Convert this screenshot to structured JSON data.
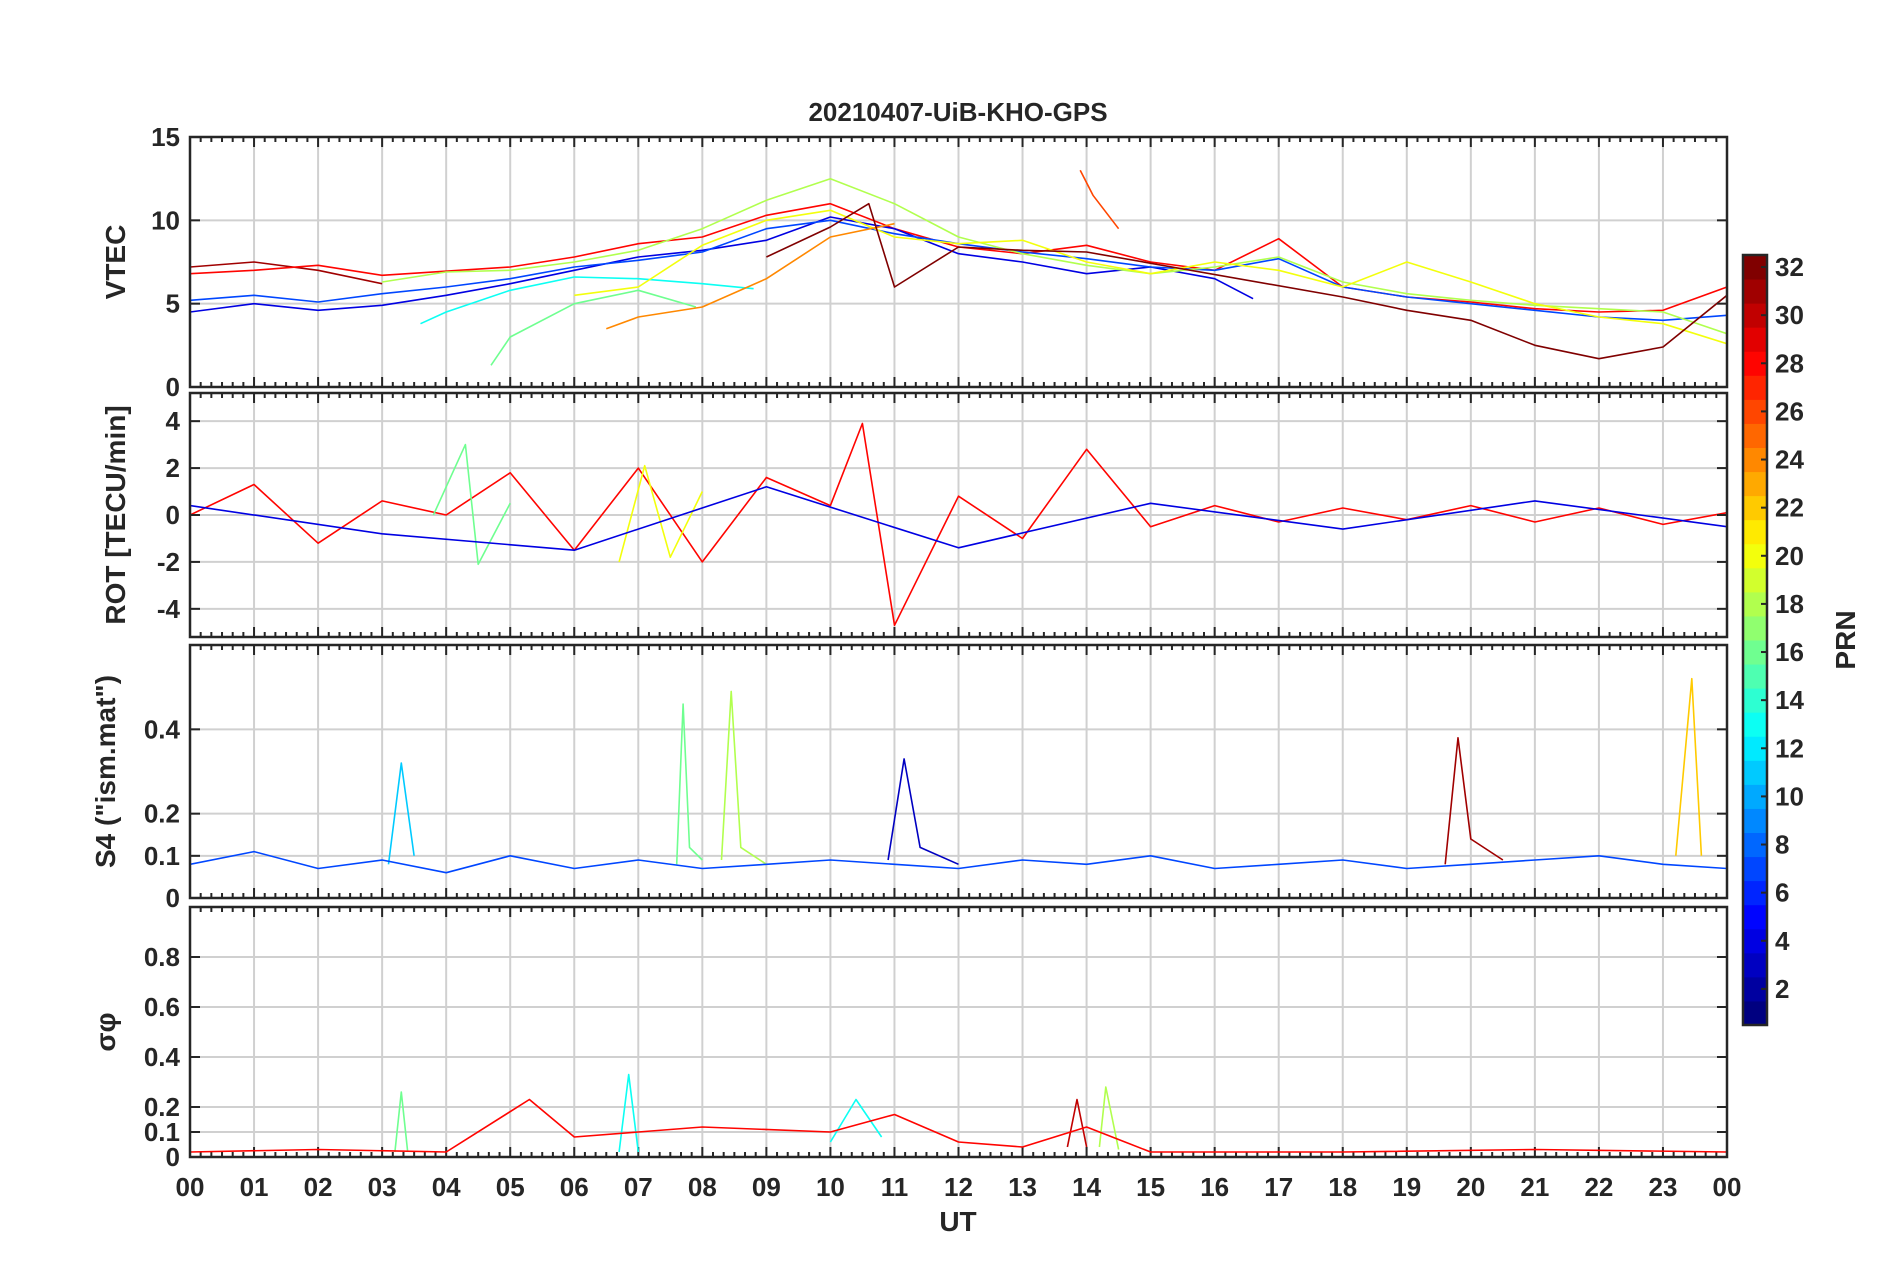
{
  "chart_data": {
    "type": "line",
    "title": "20210407-UiB-KHO-GPS",
    "xlabel": "UT",
    "x_tick_labels": [
      "00",
      "01",
      "02",
      "03",
      "04",
      "05",
      "06",
      "07",
      "08",
      "09",
      "10",
      "11",
      "12",
      "13",
      "14",
      "15",
      "16",
      "17",
      "18",
      "19",
      "20",
      "21",
      "22",
      "23",
      "00"
    ],
    "xlim_hours": [
      0,
      24
    ],
    "grid": true,
    "colorbar": {
      "label": "PRN",
      "colormap": "jet",
      "range": [
        1,
        32
      ],
      "tick_labels": [
        "2",
        "4",
        "6",
        "8",
        "10",
        "12",
        "14",
        "16",
        "18",
        "20",
        "22",
        "24",
        "26",
        "28",
        "30",
        "32"
      ]
    },
    "panels": [
      {
        "ylabel": "VTEC",
        "ylim": [
          0,
          15
        ],
        "y_ticks": [
          0,
          5,
          10,
          15
        ],
        "y_tick_labels": [
          "0",
          "5",
          "10",
          "15"
        ],
        "series": [
          {
            "color_value": 31,
            "x": [
              0,
              1,
              2,
              3
            ],
            "y": [
              7.2,
              7.5,
              7.0,
              6.2
            ]
          },
          {
            "color_value": 28,
            "x": [
              0,
              1,
              2,
              3,
              5,
              6,
              7,
              8,
              9,
              10,
              11,
              12,
              13,
              14,
              15,
              16,
              17,
              18,
              19,
              20,
              21,
              22,
              23,
              24
            ],
            "y": [
              6.8,
              7.0,
              7.3,
              6.7,
              7.2,
              7.8,
              8.6,
              9.0,
              10.3,
              11.0,
              9.5,
              8.4,
              8.0,
              8.5,
              7.5,
              7.0,
              8.9,
              6.0,
              5.4,
              5.1,
              4.7,
              4.5,
              4.6,
              6.0
            ]
          },
          {
            "color_value": 4,
            "x": [
              0,
              1,
              2,
              3,
              4,
              5,
              6,
              7,
              8,
              9,
              10,
              11,
              12,
              13,
              14,
              15,
              16,
              16.6
            ],
            "y": [
              4.5,
              5.0,
              4.6,
              4.9,
              5.5,
              6.2,
              7.0,
              7.8,
              8.2,
              8.8,
              10.2,
              9.5,
              8.0,
              7.5,
              6.8,
              7.2,
              6.5,
              5.3
            ]
          },
          {
            "color_value": 7,
            "x": [
              0,
              1,
              2,
              3,
              4,
              5,
              6,
              7,
              8,
              9,
              10,
              11,
              12,
              13,
              14,
              15,
              16,
              17,
              18,
              19,
              20,
              21,
              22,
              23,
              24
            ],
            "y": [
              5.2,
              5.5,
              5.1,
              5.6,
              6.0,
              6.5,
              7.2,
              7.6,
              8.1,
              9.5,
              10.0,
              9.2,
              8.6,
              8.1,
              7.7,
              7.2,
              7.0,
              7.7,
              6.0,
              5.4,
              5.0,
              4.6,
              4.2,
              4.0,
              4.3
            ]
          },
          {
            "color_value": 13,
            "x": [
              3.6,
              4,
              5,
              6,
              7,
              8,
              8.8
            ],
            "y": [
              3.8,
              4.5,
              5.8,
              6.6,
              6.5,
              6.2,
              5.9
            ]
          },
          {
            "color_value": 16,
            "x": [
              4.7,
              5,
              6,
              7,
              7.9
            ],
            "y": [
              1.3,
              3.0,
              5.0,
              5.8,
              4.8
            ]
          },
          {
            "color_value": 18,
            "x": [
              3,
              4,
              5,
              6,
              7,
              8,
              9,
              10,
              11,
              12,
              13,
              14,
              15,
              16,
              17,
              18,
              19,
              20,
              21,
              22,
              23,
              24
            ],
            "y": [
              6.3,
              6.9,
              7.0,
              7.5,
              8.2,
              9.5,
              11.2,
              12.5,
              11.0,
              9.0,
              8.0,
              7.3,
              6.8,
              7.2,
              7.8,
              6.3,
              5.6,
              5.2,
              4.9,
              4.7,
              4.5,
              3.2
            ]
          },
          {
            "color_value": 20,
            "x": [
              6,
              7,
              8,
              9,
              10,
              11,
              12,
              13,
              14,
              15,
              16,
              17,
              18,
              19,
              20,
              21,
              22,
              23,
              24
            ],
            "y": [
              5.5,
              6.0,
              8.5,
              10.0,
              10.6,
              9.0,
              8.6,
              8.8,
              7.5,
              6.8,
              7.5,
              7.0,
              6.0,
              7.5,
              6.3,
              5.0,
              4.2,
              3.8,
              2.6
            ]
          },
          {
            "color_value": 24,
            "x": [
              6.5,
              7,
              8,
              9,
              10,
              11
            ],
            "y": [
              3.5,
              4.2,
              4.8,
              6.5,
              9.0,
              9.8
            ]
          },
          {
            "color_value": 26,
            "x": [
              13.9,
              14.1,
              14.5
            ],
            "y": [
              13.0,
              11.5,
              9.5
            ]
          },
          {
            "color_value": 32,
            "x": [
              9,
              10,
              10.6,
              11,
              12,
              13,
              14,
              18,
              19,
              20,
              21,
              22,
              23,
              24
            ],
            "y": [
              7.8,
              9.6,
              11.0,
              6.0,
              8.4,
              8.2,
              8.1,
              5.4,
              4.6,
              4.0,
              2.5,
              1.7,
              2.4,
              5.5
            ]
          }
        ]
      },
      {
        "ylabel": "ROT [TECU/min]",
        "ylim": [
          -5.2,
          5.2
        ],
        "y_ticks": [
          -4,
          -2,
          0,
          2,
          4
        ],
        "y_tick_labels": [
          "-4",
          "-2",
          "0",
          "2",
          "4"
        ],
        "series": [
          {
            "color_value": 28,
            "x": [
              0,
              1,
              2,
              3,
              4,
              5,
              6,
              7,
              8,
              9,
              10,
              10.5,
              11,
              12,
              13,
              14,
              15,
              16,
              17,
              18,
              19,
              20,
              21,
              22,
              23,
              24
            ],
            "y": [
              0,
              1.3,
              -1.2,
              0.6,
              0,
              1.8,
              -1.5,
              2.0,
              -2.0,
              1.6,
              0.4,
              3.9,
              -4.7,
              0.8,
              -1.0,
              2.8,
              -0.5,
              0.4,
              -0.3,
              0.3,
              -0.2,
              0.4,
              -0.3,
              0.3,
              -0.4,
              0.1
            ]
          },
          {
            "color_value": 16,
            "x": [
              3.8,
              4.3,
              4.5,
              5
            ],
            "y": [
              0,
              3.0,
              -2.1,
              0.5
            ]
          },
          {
            "color_value": 20,
            "x": [
              6.7,
              7.1,
              7.5,
              8
            ],
            "y": [
              -2.0,
              2.1,
              -1.8,
              1.0
            ]
          },
          {
            "color_value": 4,
            "x": [
              0,
              3,
              6,
              9,
              12,
              15,
              18,
              21,
              24
            ],
            "y": [
              0.4,
              -0.8,
              -1.5,
              1.2,
              -1.4,
              0.5,
              -0.6,
              0.6,
              -0.5
            ]
          }
        ]
      },
      {
        "ylabel": "S4 (\"ism.mat\")",
        "ylim": [
          0,
          0.6
        ],
        "y_ticks": [
          0,
          0.1,
          0.2,
          0.4
        ],
        "y_tick_labels": [
          "0",
          "0.1",
          "0.2",
          "0.4"
        ],
        "series": [
          {
            "color_value": 16,
            "x": [
              7.6,
              7.7,
              7.8,
              8.0
            ],
            "y": [
              0.08,
              0.46,
              0.12,
              0.09
            ]
          },
          {
            "color_value": 18,
            "x": [
              8.3,
              8.45,
              8.6,
              9.0
            ],
            "y": [
              0.09,
              0.49,
              0.12,
              0.08
            ]
          },
          {
            "color_value": 3,
            "x": [
              10.9,
              11.15,
              11.4,
              12
            ],
            "y": [
              0.09,
              0.33,
              0.12,
              0.08
            ]
          },
          {
            "color_value": 31,
            "x": [
              19.6,
              19.8,
              20.0,
              20.5
            ],
            "y": [
              0.08,
              0.38,
              0.14,
              0.09
            ]
          },
          {
            "color_value": 22,
            "x": [
              23.2,
              23.45,
              23.6
            ],
            "y": [
              0.1,
              0.52,
              0.1
            ]
          },
          {
            "color_value": 11,
            "x": [
              3.1,
              3.3,
              3.5
            ],
            "y": [
              0.08,
              0.32,
              0.1
            ]
          },
          {
            "color_value": 7,
            "x": [
              0,
              1,
              2,
              3,
              4,
              5,
              6,
              7,
              8,
              9,
              10,
              11,
              12,
              13,
              14,
              15,
              16,
              17,
              18,
              19,
              20,
              21,
              22,
              23,
              24
            ],
            "y": [
              0.08,
              0.11,
              0.07,
              0.09,
              0.06,
              0.1,
              0.07,
              0.09,
              0.07,
              0.08,
              0.09,
              0.08,
              0.07,
              0.09,
              0.08,
              0.1,
              0.07,
              0.08,
              0.09,
              0.07,
              0.08,
              0.09,
              0.1,
              0.08,
              0.07
            ]
          }
        ]
      },
      {
        "ylabel": "σφ",
        "ylim": [
          0,
          1.0
        ],
        "y_ticks": [
          0,
          0.1,
          0.2,
          0.4,
          0.6,
          0.8
        ],
        "y_tick_labels": [
          "0",
          "0.1",
          "0.2",
          "0.4",
          "0.6",
          "0.8"
        ],
        "series": [
          {
            "color_value": 16,
            "x": [
              3.2,
              3.3,
              3.4
            ],
            "y": [
              0.02,
              0.26,
              0.02
            ]
          },
          {
            "color_value": 13,
            "x": [
              6.7,
              6.85,
              7.0
            ],
            "y": [
              0.02,
              0.33,
              0.02
            ]
          },
          {
            "color_value": 30,
            "x": [
              13.7,
              13.85,
              14.0
            ],
            "y": [
              0.04,
              0.23,
              0.04
            ]
          },
          {
            "color_value": 18,
            "x": [
              14.2,
              14.3,
              14.5
            ],
            "y": [
              0.04,
              0.28,
              0.03
            ]
          },
          {
            "color_value": 13,
            "x": [
              10.0,
              10.4,
              10.8
            ],
            "y": [
              0.06,
              0.23,
              0.08
            ]
          },
          {
            "color_value": 28,
            "x": [
              0,
              2,
              4,
              5.3,
              6,
              8,
              10,
              11,
              12,
              13,
              14,
              15,
              18,
              21,
              24
            ],
            "y": [
              0.02,
              0.03,
              0.02,
              0.23,
              0.08,
              0.12,
              0.1,
              0.17,
              0.06,
              0.04,
              0.12,
              0.02,
              0.02,
              0.03,
              0.02
            ]
          }
        ]
      }
    ]
  }
}
